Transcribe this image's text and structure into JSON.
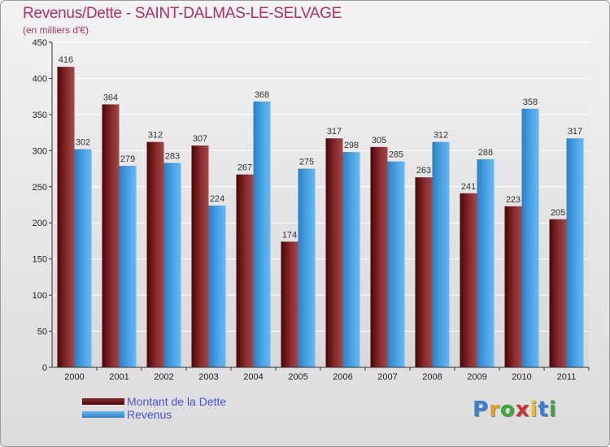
{
  "header": {
    "title": "Revenus/Dette - SAINT-DALMAS-LE-SELVAGE",
    "subtitle": "(en milliers d'€)"
  },
  "chart_data": {
    "type": "bar",
    "title": "Revenus/Dette - SAINT-DALMAS-LE-SELVAGE",
    "subtitle": "(en milliers d'€)",
    "xlabel": "",
    "ylabel": "",
    "ylim": [
      0,
      450
    ],
    "yticks": [
      0,
      50,
      100,
      150,
      200,
      250,
      300,
      350,
      400,
      450
    ],
    "grid": true,
    "legend_position": "bottom-left",
    "categories": [
      "2000",
      "2001",
      "2002",
      "2003",
      "2004",
      "2005",
      "2006",
      "2007",
      "2008",
      "2009",
      "2010",
      "2011"
    ],
    "series": [
      {
        "name": "Montant de la Dette",
        "color": "#7a1f22",
        "values": [
          416,
          364,
          312,
          307,
          267,
          174,
          317,
          305,
          263,
          241,
          223,
          205
        ]
      },
      {
        "name": "Revenus",
        "color": "#3d98dc",
        "values": [
          302,
          279,
          283,
          224,
          368,
          275,
          298,
          285,
          312,
          288,
          358,
          317
        ]
      }
    ]
  },
  "legend": {
    "items": [
      {
        "label": "Montant de la Dette",
        "color": "#7a1f22"
      },
      {
        "label": "Revenus",
        "color": "#3d98dc"
      }
    ]
  },
  "logo": {
    "letters": [
      "P",
      "r",
      "o",
      "x",
      "i",
      "t",
      "i"
    ],
    "colors": [
      "#3a7fd0",
      "#e8a020",
      "#3aaa3a",
      "#d02f2f",
      "#e8c020",
      "#3a7fd0",
      "#3aaa3a"
    ]
  }
}
